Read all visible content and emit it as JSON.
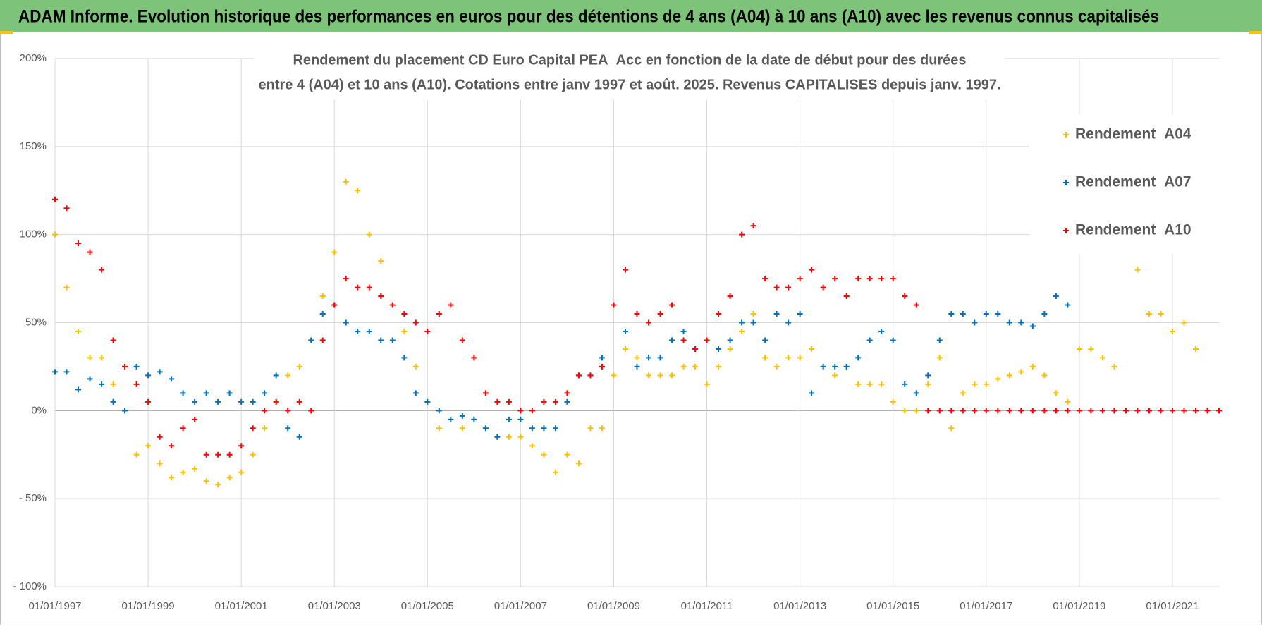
{
  "header": {
    "title": "ADAM Informe. Evolution historique des performances en euros pour des détentions de 4 ans (A04) à 10 ans (A10) avec les revenus connus capitalisés"
  },
  "chart_data": {
    "type": "scatter",
    "title": [
      "Rendement du placement CD Euro Capital PEA_Acc en fonction de la date de début pour des durées",
      "entre 4 (A04) et 10 ans (A10).  Cotations entre janv 1997 et août. 2025. Revenus CAPITALISES depuis janv. 1997."
    ],
    "x": [
      "01/01/1997",
      "01/04/1997",
      "01/07/1997",
      "01/10/1997",
      "01/01/1998",
      "01/04/1998",
      "01/07/1998",
      "01/10/1998",
      "01/01/1999",
      "01/04/1999",
      "01/07/1999",
      "01/10/1999",
      "01/01/2000",
      "01/04/2000",
      "01/07/2000",
      "01/10/2000",
      "01/01/2001",
      "01/04/2001",
      "01/07/2001",
      "01/10/2001",
      "01/01/2002",
      "01/04/2002",
      "01/07/2002",
      "01/10/2002",
      "01/01/2003",
      "01/04/2003",
      "01/07/2003",
      "01/10/2003",
      "01/01/2004",
      "01/04/2004",
      "01/07/2004",
      "01/10/2004",
      "01/01/2005",
      "01/04/2005",
      "01/07/2005",
      "01/10/2005",
      "01/01/2006",
      "01/04/2006",
      "01/07/2006",
      "01/10/2006",
      "01/01/2007",
      "01/04/2007",
      "01/07/2007",
      "01/10/2007",
      "01/01/2008",
      "01/04/2008",
      "01/07/2008",
      "01/10/2008",
      "01/01/2009",
      "01/04/2009",
      "01/07/2009",
      "01/10/2009",
      "01/01/2010",
      "01/04/2010",
      "01/07/2010",
      "01/10/2010",
      "01/01/2011",
      "01/04/2011",
      "01/07/2011",
      "01/10/2011",
      "01/01/2012",
      "01/04/2012",
      "01/07/2012",
      "01/10/2012",
      "01/01/2013",
      "01/04/2013",
      "01/07/2013",
      "01/10/2013",
      "01/01/2014",
      "01/04/2014",
      "01/07/2014",
      "01/10/2014",
      "01/01/2015",
      "01/04/2015",
      "01/07/2015",
      "01/10/2015",
      "01/01/2016",
      "01/04/2016",
      "01/07/2016",
      "01/10/2016",
      "01/01/2017",
      "01/04/2017",
      "01/07/2017",
      "01/10/2017",
      "01/01/2018",
      "01/04/2018",
      "01/07/2018",
      "01/10/2018",
      "01/01/2019",
      "01/04/2019",
      "01/07/2019",
      "01/10/2019",
      "01/01/2020",
      "01/04/2020",
      "01/07/2020",
      "01/10/2020",
      "01/01/2021",
      "01/04/2021",
      "01/07/2021",
      "01/10/2021",
      "01/01/2022"
    ],
    "series": [
      {
        "name": "Rendement_A04",
        "color": "#FFC000",
        "values": [
          100,
          70,
          45,
          30,
          30,
          15,
          0,
          -25,
          -20,
          -30,
          -38,
          -35,
          -33,
          -40,
          -42,
          -38,
          -35,
          -25,
          -10,
          5,
          20,
          25,
          40,
          65,
          90,
          130,
          125,
          100,
          85,
          60,
          45,
          25,
          5,
          -10,
          -5,
          -10,
          -5,
          -10,
          -15,
          -15,
          -15,
          -20,
          -25,
          -35,
          -25,
          -30,
          -10,
          -10,
          20,
          35,
          30,
          20,
          20,
          20,
          25,
          25,
          15,
          25,
          35,
          45,
          55,
          30,
          25,
          30,
          30,
          35,
          25,
          20,
          25,
          15,
          15,
          15,
          5,
          0,
          0,
          15,
          30,
          -10,
          10,
          15,
          15,
          18,
          20,
          22,
          25,
          20,
          10,
          5,
          35,
          35,
          30,
          25,
          null,
          80,
          55,
          55,
          45,
          50,
          35,
          null,
          null
        ]
      },
      {
        "name": "Rendement_A07",
        "color": "#0070C0",
        "values": [
          22,
          22,
          12,
          18,
          15,
          5,
          0,
          25,
          20,
          22,
          18,
          10,
          5,
          10,
          5,
          10,
          5,
          5,
          10,
          20,
          -10,
          -15,
          40,
          55,
          60,
          50,
          45,
          45,
          40,
          40,
          30,
          10,
          5,
          0,
          -5,
          -3,
          -5,
          -10,
          -15,
          -5,
          -5,
          -10,
          -10,
          -10,
          5,
          20,
          20,
          30,
          60,
          45,
          25,
          30,
          30,
          40,
          45,
          35,
          40,
          35,
          40,
          50,
          50,
          40,
          55,
          50,
          55,
          10,
          25,
          25,
          25,
          30,
          40,
          45,
          40,
          15,
          10,
          20,
          40,
          55,
          55,
          50,
          55,
          55,
          50,
          50,
          48,
          55,
          65,
          60,
          null,
          null,
          null,
          null,
          null,
          null,
          null,
          null,
          null,
          null,
          null,
          null,
          null
        ]
      },
      {
        "name": "Rendement_A10",
        "color": "#FF0000",
        "values": [
          120,
          115,
          95,
          90,
          80,
          40,
          25,
          15,
          5,
          -15,
          -20,
          -10,
          -5,
          -25,
          -25,
          -25,
          -20,
          -10,
          0,
          5,
          0,
          5,
          0,
          40,
          60,
          75,
          70,
          70,
          65,
          60,
          55,
          50,
          45,
          55,
          60,
          40,
          30,
          10,
          5,
          5,
          0,
          0,
          5,
          5,
          10,
          20,
          20,
          25,
          60,
          80,
          55,
          50,
          55,
          60,
          40,
          35,
          40,
          55,
          65,
          100,
          105,
          75,
          70,
          70,
          75,
          80,
          70,
          75,
          65,
          75,
          75,
          75,
          75,
          65,
          60,
          0,
          0,
          0,
          0,
          0,
          0,
          0,
          0,
          0,
          0,
          0,
          0,
          0,
          0,
          0,
          0,
          0,
          0,
          0,
          0,
          0,
          0,
          0,
          0,
          0,
          0
        ]
      }
    ],
    "xlim": [
      "01/01/1997",
      "01/01/2022"
    ],
    "xticks": [
      "01/01/1997",
      "01/01/1999",
      "01/01/2001",
      "01/01/2003",
      "01/01/2005",
      "01/01/2007",
      "01/01/2009",
      "01/01/2011",
      "01/01/2013",
      "01/01/2015",
      "01/01/2017",
      "01/01/2019",
      "01/01/2021"
    ],
    "ylim": [
      -100,
      200
    ],
    "yticks": [
      {
        "value": -100,
        "label": "- 100%"
      },
      {
        "value": -50,
        "label": "- 50%"
      },
      {
        "value": 0,
        "label": "0%"
      },
      {
        "value": 50,
        "label": "50%"
      },
      {
        "value": 100,
        "label": "100%"
      },
      {
        "value": 150,
        "label": "150%"
      },
      {
        "value": 200,
        "label": "200%"
      }
    ],
    "grid": true,
    "legend": "right"
  }
}
